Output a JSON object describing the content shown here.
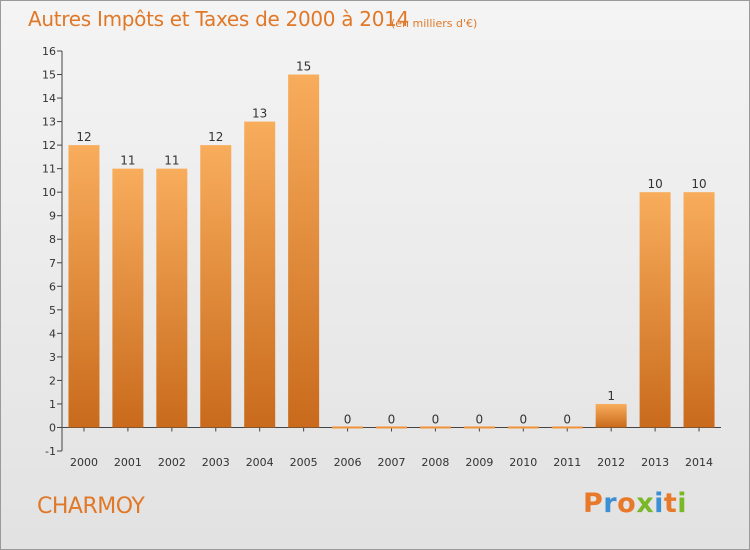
{
  "header": {
    "title": "Autres Impôts et Taxes de 2000 à 2014",
    "unit_note": "(en milliers d'€)"
  },
  "footer": {
    "commune": "CHARMOY",
    "logo_letters": [
      "P",
      "r",
      "o",
      "x",
      "i",
      "t",
      "i"
    ],
    "logo_colors": [
      "#e8792b",
      "#3d8fd4",
      "#e8792b",
      "#7ab829",
      "#3d8fd4",
      "#e8792b",
      "#7ab829"
    ]
  },
  "chart_data": {
    "type": "bar",
    "categories": [
      "2000",
      "2001",
      "2002",
      "2003",
      "2004",
      "2005",
      "2006",
      "2007",
      "2008",
      "2009",
      "2010",
      "2011",
      "2012",
      "2013",
      "2014"
    ],
    "values": [
      12,
      11,
      11,
      12,
      13,
      15,
      0,
      0,
      0,
      0,
      0,
      0,
      1,
      10,
      10
    ],
    "data_labels": [
      "12",
      "11",
      "11",
      "12",
      "13",
      "15",
      "0",
      "0",
      "0",
      "0",
      "0",
      "0",
      "1",
      "10",
      "10"
    ],
    "y_ticks": [
      -1,
      0,
      1,
      2,
      3,
      4,
      5,
      6,
      7,
      8,
      9,
      10,
      11,
      12,
      13,
      14,
      15,
      16
    ],
    "ylim": [
      -1,
      16
    ],
    "grid": false,
    "bar_color": "#f0923a",
    "bar_color_light": "#f8ad5c",
    "bar_color_dark": "#c96a1c"
  }
}
